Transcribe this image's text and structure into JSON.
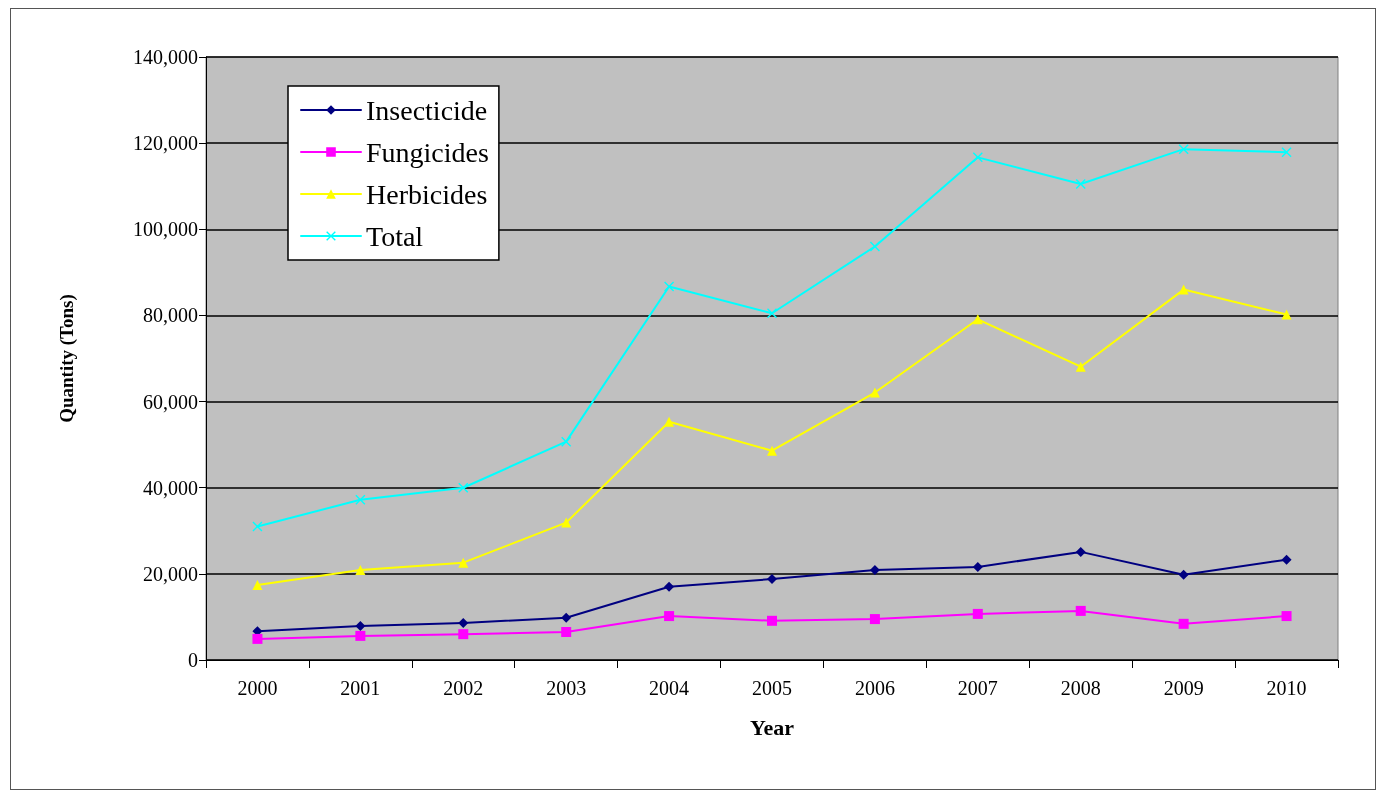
{
  "chart_data": {
    "type": "line",
    "xlabel": "Year",
    "ylabel": "Quantity (Tons)",
    "categories": [
      "2000",
      "2001",
      "2002",
      "2003",
      "2004",
      "2005",
      "2006",
      "2007",
      "2008",
      "2009",
      "2010"
    ],
    "series": [
      {
        "name": "Insecticide",
        "color": "#000080",
        "marker": "diamond",
        "values": [
          6700,
          7900,
          8600,
          9800,
          17000,
          18800,
          20900,
          21600,
          25100,
          19800,
          23300
        ]
      },
      {
        "name": "Fungicides",
        "color": "#ff00ff",
        "marker": "square",
        "values": [
          4900,
          5600,
          6000,
          6500,
          10200,
          9100,
          9500,
          10700,
          11400,
          8400,
          10200
        ]
      },
      {
        "name": "Herbicides",
        "color": "#ffff00",
        "marker": "triangle",
        "values": [
          17400,
          20900,
          22600,
          31900,
          55300,
          48600,
          62100,
          79100,
          68100,
          86000,
          80200
        ]
      },
      {
        "name": "Total",
        "color": "#00ffff",
        "marker": "cross",
        "values": [
          31000,
          37200,
          40000,
          50700,
          86700,
          80500,
          96000,
          116700,
          110500,
          118600,
          117900
        ]
      }
    ],
    "ylim": [
      0,
      140000
    ],
    "yticks": [
      {
        "value": 0,
        "label": "0"
      },
      {
        "value": 20000,
        "label": "20,000"
      },
      {
        "value": 40000,
        "label": "40,000"
      },
      {
        "value": 60000,
        "label": "60,000"
      },
      {
        "value": 80000,
        "label": "80,000"
      },
      {
        "value": 100000,
        "label": "100,000"
      },
      {
        "value": 120000,
        "label": "120,000"
      },
      {
        "value": 140000,
        "label": "140,000"
      }
    ],
    "grid": "y",
    "legend": "top left",
    "line_style": "solid"
  }
}
